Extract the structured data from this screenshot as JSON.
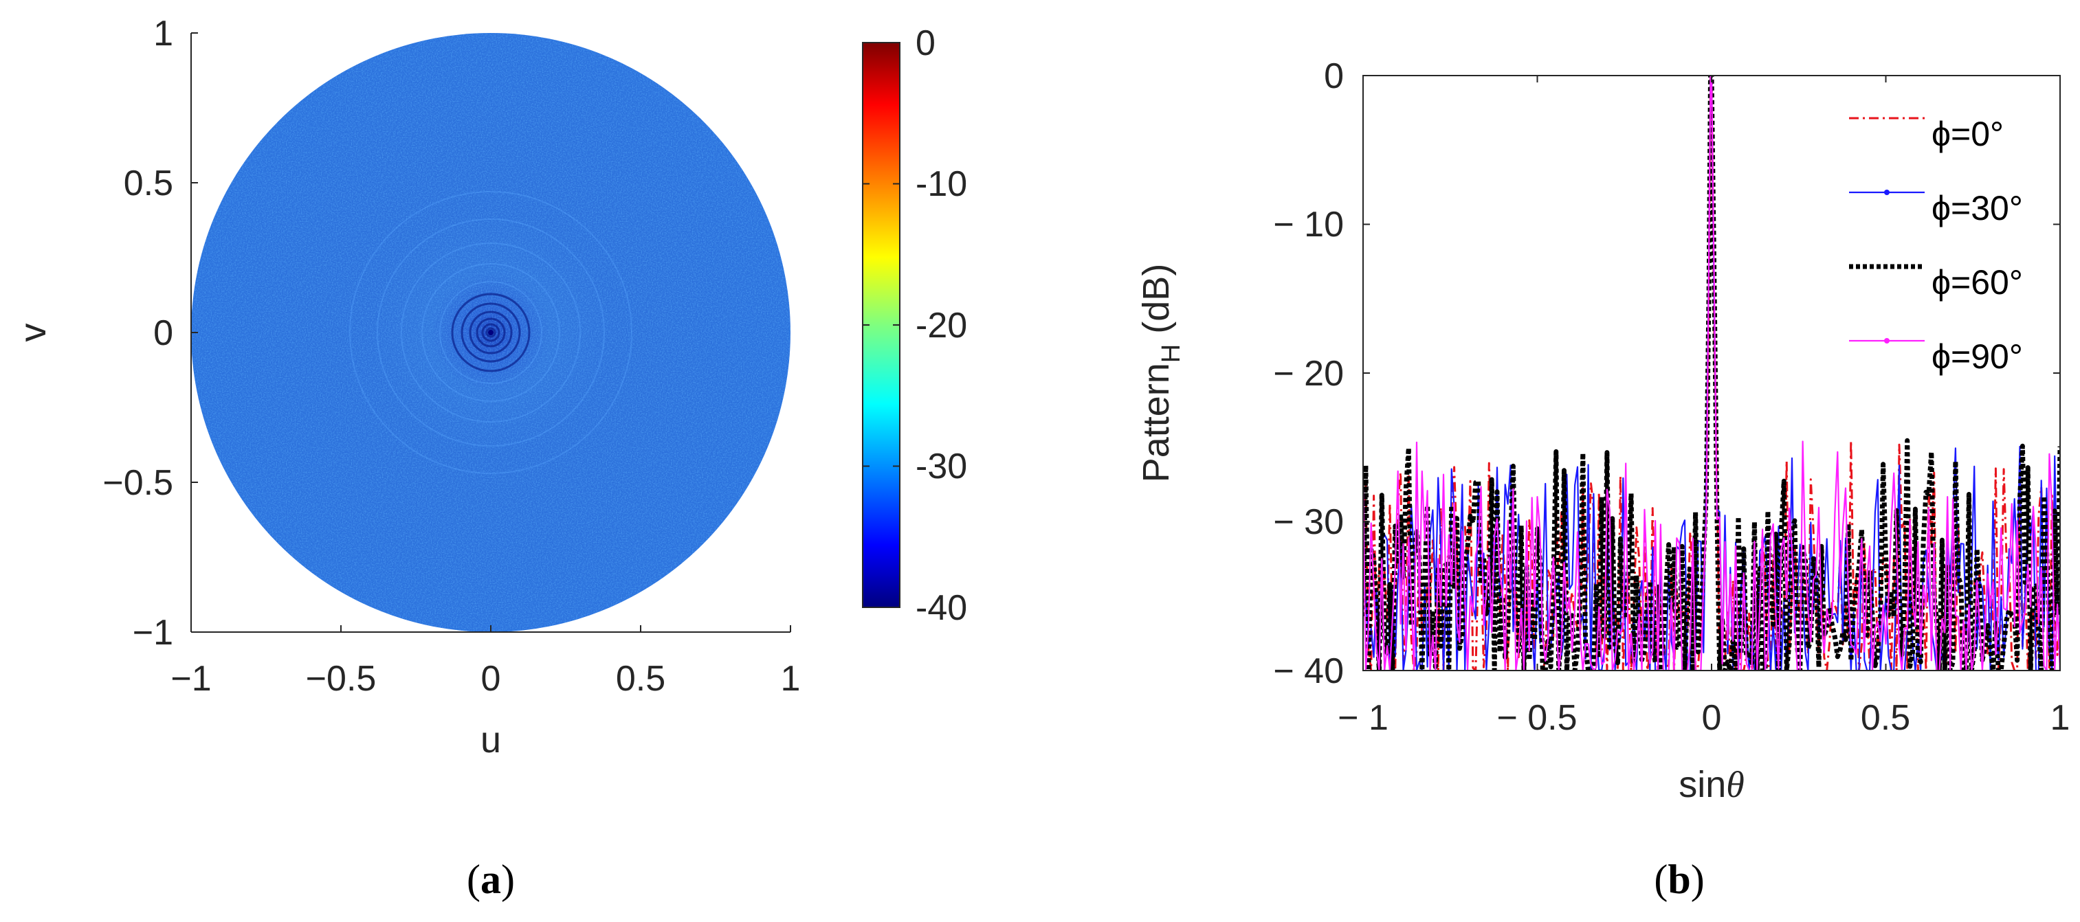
{
  "panels": [
    {
      "label": "(a)"
    },
    {
      "label": "(b)"
    }
  ],
  "chart_data": [
    {
      "type": "heatmap",
      "title": "",
      "xlabel": "u",
      "ylabel": "v",
      "xlim": [
        -1,
        1
      ],
      "ylim": [
        -1,
        1
      ],
      "xticks": [
        "−1",
        "−0.5",
        "0",
        "0.5",
        "1"
      ],
      "yticks": [
        "1",
        "0.5",
        "0",
        "−0.5",
        "−1"
      ],
      "colorbar": {
        "colormap": "jet",
        "range": [
          -40,
          0
        ],
        "ticks": [
          "0",
          "-10",
          "-20",
          "-30",
          "-40"
        ]
      },
      "grid": false,
      "description_values": {
        "background_level_db": -32,
        "peak_level_db": 0,
        "peak_location": [
          0,
          0
        ]
      }
    },
    {
      "type": "line",
      "title": "",
      "xlabel": "sinθ",
      "ylabel": "Pattern",
      "ylabel_subscript": "H",
      "ylabel_unit": "(dB)",
      "xlim": [
        -1,
        1
      ],
      "ylim": [
        -40,
        0
      ],
      "xticks": [
        "− 1",
        "− 0.5",
        "0",
        "0.5",
        "1"
      ],
      "yticks": [
        "0",
        "− 10",
        "− 20",
        "− 30",
        "− 40"
      ],
      "grid": false,
      "legend_position": "top-right",
      "mainlobe": {
        "x": 0,
        "y": 0
      },
      "sidelobe_range_db": [
        -40,
        -23.5
      ],
      "series": [
        {
          "name": "ϕ=0°",
          "color": "#e8141c",
          "style": "dashdot",
          "seed": 11
        },
        {
          "name": "ϕ=30°",
          "color": "#1a1aff",
          "style": "solid-dot",
          "seed": 23
        },
        {
          "name": "ϕ=60°",
          "color": "#000000",
          "style": "dotted-thick",
          "seed": 37
        },
        {
          "name": "ϕ=90°",
          "color": "#ff20ff",
          "style": "solid-dot",
          "seed": 53
        }
      ]
    }
  ]
}
